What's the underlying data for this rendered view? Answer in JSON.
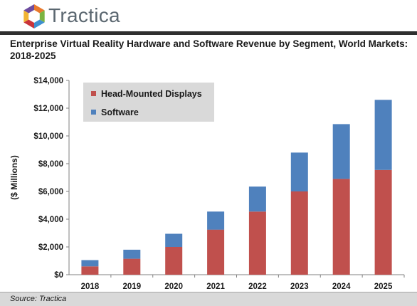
{
  "brand": {
    "name": "Tractica",
    "logo_colors": [
      "#e8792c",
      "#7bb441",
      "#3f8fcf",
      "#c9343a",
      "#f1b434",
      "#6d4c9f"
    ]
  },
  "source": "Source: Tractica",
  "chart_data": {
    "type": "bar",
    "stacked": true,
    "title": "Enterprise Virtual Reality Hardware and Software Revenue by Segment, World Markets: 2018-2025",
    "ylabel": "($ Millions)",
    "xlabel": "",
    "ylim": [
      0,
      14000
    ],
    "yticks": [
      0,
      2000,
      4000,
      6000,
      8000,
      10000,
      12000,
      14000
    ],
    "ytick_labels": [
      "$0",
      "$2,000",
      "$4,000",
      "$6,000",
      "$8,000",
      "$10,000",
      "$12,000",
      "$14,000"
    ],
    "categories": [
      "2018",
      "2019",
      "2020",
      "2021",
      "2022",
      "2023",
      "2024",
      "2025"
    ],
    "series": [
      {
        "name": "Head-Mounted Displays",
        "color": "#c0504d",
        "values": [
          600,
          1150,
          2000,
          3250,
          4550,
          6000,
          6900,
          7550
        ]
      },
      {
        "name": "Software",
        "color": "#4f81bd",
        "values": [
          450,
          650,
          950,
          1300,
          1800,
          2800,
          3950,
          5050
        ]
      }
    ],
    "grid": false,
    "legend": "top-left"
  }
}
